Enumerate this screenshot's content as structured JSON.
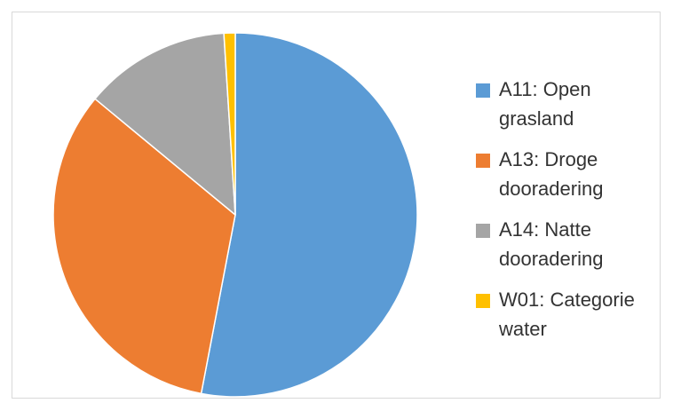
{
  "chart_data": {
    "type": "pie",
    "title": "",
    "legend_position": "right",
    "slices": [
      {
        "label": "A11: Open grasland",
        "legend_lines": [
          "A11: Open",
          "grasland"
        ],
        "value": 53.0,
        "color": "#5B9BD5"
      },
      {
        "label": "A13: Droge dooradering",
        "legend_lines": [
          "A13: Droge",
          "dooradering"
        ],
        "value": 33.0,
        "color": "#ED7D31"
      },
      {
        "label": "A14: Natte dooradering",
        "legend_lines": [
          "A14: Natte",
          "dooradering"
        ],
        "value": 13.0,
        "color": "#A5A5A5"
      },
      {
        "label": "W01: Categorie water",
        "legend_lines": [
          "W01: Categorie",
          "water"
        ],
        "value": 1.0,
        "color": "#FFC000"
      }
    ]
  }
}
